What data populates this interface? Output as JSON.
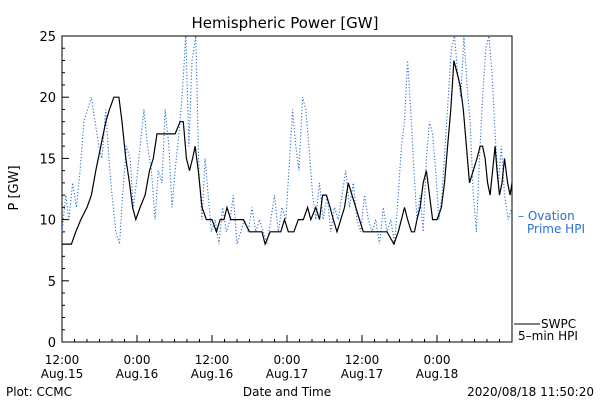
{
  "chart_data": {
    "type": "line",
    "title": "Hemispheric Power [GW]",
    "xlabel": "Date and Time",
    "ylabel": "P [GW]",
    "ylim": [
      0,
      25
    ],
    "yticks": [
      "0",
      "5",
      "10",
      "15",
      "20",
      "25"
    ],
    "xlim_hours_labels": "2020-08-15 12:00 to 2020-08-18 12:00",
    "xticks": [
      {
        "time": "12:00",
        "date": "Aug.15"
      },
      {
        "time": "0:00",
        "date": "Aug.16"
      },
      {
        "time": "12:00",
        "date": "Aug.16"
      },
      {
        "time": "0:00",
        "date": "Aug.17"
      },
      {
        "time": "12:00",
        "date": "Aug.17"
      },
      {
        "time": "0:00",
        "date": "Aug.18"
      }
    ],
    "grid": false,
    "legend_position": "right",
    "series": [
      {
        "name": "SWPC 5-min HPI",
        "legend_line1": "SWPC",
        "legend_line2": "5–min HPI",
        "style": "solid",
        "color": "#000000",
        "points": [
          [
            0,
            8
          ],
          [
            1.5,
            8
          ],
          [
            2.2,
            9
          ],
          [
            3,
            10
          ],
          [
            4,
            11
          ],
          [
            4.7,
            12
          ],
          [
            5.4,
            14
          ],
          [
            6.2,
            16
          ],
          [
            7,
            18
          ],
          [
            7.6,
            19
          ],
          [
            8.3,
            20
          ],
          [
            9.1,
            20
          ],
          [
            9.6,
            18
          ],
          [
            10.2,
            15
          ],
          [
            10.8,
            13
          ],
          [
            11.3,
            11
          ],
          [
            11.8,
            10
          ],
          [
            12.5,
            11
          ],
          [
            13.3,
            12
          ],
          [
            14,
            14
          ],
          [
            14.6,
            15
          ],
          [
            15.2,
            17
          ],
          [
            16,
            17
          ],
          [
            17,
            17
          ],
          [
            18.1,
            17
          ],
          [
            18.9,
            18
          ],
          [
            19.4,
            18
          ],
          [
            19.9,
            15
          ],
          [
            20.4,
            14
          ],
          [
            20.9,
            15
          ],
          [
            21.3,
            16
          ],
          [
            21.8,
            14
          ],
          [
            22.4,
            11
          ],
          [
            23.1,
            10
          ],
          [
            24,
            10
          ],
          [
            24.7,
            9
          ],
          [
            25.3,
            10
          ],
          [
            25.9,
            10
          ],
          [
            26.4,
            11
          ],
          [
            27,
            10
          ],
          [
            28,
            10
          ],
          [
            29,
            10
          ],
          [
            30,
            9
          ],
          [
            31,
            9
          ],
          [
            32,
            9
          ],
          [
            32.5,
            8
          ],
          [
            33.3,
            9
          ],
          [
            34,
            9
          ],
          [
            35,
            9
          ],
          [
            35.6,
            10
          ],
          [
            36.2,
            9
          ],
          [
            37.1,
            9
          ],
          [
            37.8,
            10
          ],
          [
            38.6,
            10
          ],
          [
            39.3,
            11
          ],
          [
            39.8,
            10
          ],
          [
            40.6,
            11
          ],
          [
            41.2,
            10
          ],
          [
            41.7,
            12
          ],
          [
            42.3,
            12
          ],
          [
            42.9,
            11
          ],
          [
            43.4,
            10
          ],
          [
            44,
            9
          ],
          [
            44.6,
            10
          ],
          [
            45.2,
            11
          ],
          [
            45.8,
            13
          ],
          [
            46.4,
            12
          ],
          [
            47,
            11
          ],
          [
            47.6,
            10
          ],
          [
            48.2,
            9
          ],
          [
            49,
            9
          ],
          [
            50,
            9
          ],
          [
            51,
            9
          ],
          [
            52,
            9
          ],
          [
            53.1,
            8
          ],
          [
            53.8,
            9
          ],
          [
            54.3,
            10
          ],
          [
            54.8,
            11
          ],
          [
            55.3,
            10
          ],
          [
            55.9,
            9
          ],
          [
            56.4,
            9
          ],
          [
            56.8,
            10
          ],
          [
            57.3,
            11
          ],
          [
            57.8,
            13
          ],
          [
            58.3,
            14
          ],
          [
            58.8,
            12
          ],
          [
            59.3,
            10
          ],
          [
            60,
            10
          ],
          [
            60.7,
            11
          ],
          [
            61.2,
            13
          ],
          [
            61.7,
            16
          ],
          [
            62.2,
            19
          ],
          [
            62.7,
            23
          ],
          [
            63.2,
            22
          ],
          [
            63.7,
            21
          ],
          [
            64.2,
            19
          ],
          [
            64.7,
            16
          ],
          [
            65.2,
            13
          ],
          [
            65.8,
            14
          ],
          [
            66.4,
            15
          ],
          [
            66.9,
            16
          ],
          [
            67.3,
            16
          ],
          [
            67.7,
            15
          ],
          [
            68.1,
            13
          ],
          [
            68.5,
            12
          ],
          [
            68.9,
            14
          ],
          [
            69.3,
            16
          ],
          [
            69.6,
            14
          ],
          [
            70,
            12
          ],
          [
            70.4,
            13
          ],
          [
            70.8,
            15
          ],
          [
            71.3,
            13
          ],
          [
            71.7,
            12
          ],
          [
            72,
            13
          ]
        ]
      },
      {
        "name": "Ovation Prime HPI",
        "legend_line1": "– Ovation",
        "legend_line2": "Prime HPI",
        "style": "dotted",
        "color": "#2a6fd4",
        "points": [
          [
            0,
            9
          ],
          [
            0.6,
            12
          ],
          [
            1.1,
            10
          ],
          [
            1.7,
            13
          ],
          [
            2.3,
            11
          ],
          [
            2.9,
            14
          ],
          [
            3.5,
            18
          ],
          [
            4.1,
            19
          ],
          [
            4.7,
            20
          ],
          [
            5.3,
            18
          ],
          [
            5.9,
            16
          ],
          [
            6.4,
            15
          ],
          [
            7,
            19
          ],
          [
            7.5,
            15
          ],
          [
            8,
            12
          ],
          [
            8.6,
            9
          ],
          [
            9.2,
            8
          ],
          [
            9.7,
            12
          ],
          [
            10.3,
            16
          ],
          [
            10.9,
            15
          ],
          [
            11.4,
            11
          ],
          [
            11.9,
            13
          ],
          [
            12.5,
            16
          ],
          [
            13.1,
            19
          ],
          [
            13.7,
            16
          ],
          [
            14.3,
            14
          ],
          [
            14.9,
            10
          ],
          [
            15.4,
            14
          ],
          [
            16,
            13
          ],
          [
            16.5,
            19
          ],
          [
            17.1,
            16
          ],
          [
            17.6,
            11
          ],
          [
            18.1,
            14
          ],
          [
            18.7,
            17
          ],
          [
            19.2,
            20
          ],
          [
            19.8,
            25
          ],
          [
            20.3,
            16
          ],
          [
            20.8,
            23
          ],
          [
            21.4,
            25
          ],
          [
            21.9,
            14
          ],
          [
            22.4,
            10
          ],
          [
            22.9,
            15
          ],
          [
            23.4,
            12
          ],
          [
            23.9,
            9
          ],
          [
            24.5,
            10
          ],
          [
            25.1,
            8
          ],
          [
            25.7,
            11
          ],
          [
            26.3,
            9
          ],
          [
            26.9,
            10
          ],
          [
            27.4,
            12
          ],
          [
            28,
            8
          ],
          [
            28.6,
            9
          ],
          [
            29.2,
            10
          ],
          [
            29.8,
            9
          ],
          [
            30.4,
            11
          ],
          [
            31,
            9
          ],
          [
            31.6,
            10
          ],
          [
            32.2,
            9
          ],
          [
            32.8,
            8
          ],
          [
            33.4,
            10
          ],
          [
            34,
            12
          ],
          [
            34.6,
            9
          ],
          [
            35.2,
            11
          ],
          [
            35.8,
            10
          ],
          [
            36.3,
            14
          ],
          [
            36.9,
            19
          ],
          [
            37.4,
            16
          ],
          [
            37.9,
            14
          ],
          [
            38.5,
            20
          ],
          [
            39,
            19
          ],
          [
            39.5,
            16
          ],
          [
            40.1,
            12
          ],
          [
            40.6,
            10
          ],
          [
            41.2,
            13
          ],
          [
            41.8,
            10
          ],
          [
            42.4,
            12
          ],
          [
            43,
            9
          ],
          [
            43.6,
            11
          ],
          [
            44.2,
            10
          ],
          [
            44.8,
            12
          ],
          [
            45.4,
            14
          ],
          [
            46,
            11
          ],
          [
            46.6,
            13
          ],
          [
            47.2,
            10
          ],
          [
            47.8,
            9
          ],
          [
            48.4,
            12
          ],
          [
            49,
            10
          ],
          [
            49.6,
            9
          ],
          [
            50.2,
            10
          ],
          [
            50.8,
            8
          ],
          [
            51.4,
            11
          ],
          [
            52,
            9
          ],
          [
            52.6,
            10
          ],
          [
            53.2,
            8
          ],
          [
            53.8,
            12
          ],
          [
            54.3,
            16
          ],
          [
            54.8,
            18
          ],
          [
            55.3,
            23
          ],
          [
            55.8,
            19
          ],
          [
            56.3,
            14
          ],
          [
            56.8,
            10
          ],
          [
            57.3,
            12
          ],
          [
            57.8,
            9
          ],
          [
            58.3,
            15
          ],
          [
            58.8,
            18
          ],
          [
            59.3,
            17
          ],
          [
            59.8,
            14
          ],
          [
            60.3,
            10
          ],
          [
            60.8,
            12
          ],
          [
            61.3,
            16
          ],
          [
            61.8,
            20
          ],
          [
            62.3,
            24
          ],
          [
            62.8,
            25
          ],
          [
            63.3,
            22
          ],
          [
            63.8,
            20
          ],
          [
            64.3,
            25
          ],
          [
            64.8,
            21
          ],
          [
            65.3,
            18
          ],
          [
            65.8,
            12
          ],
          [
            66.3,
            9
          ],
          [
            66.8,
            15
          ],
          [
            67.3,
            20
          ],
          [
            67.8,
            24
          ],
          [
            68.3,
            25
          ],
          [
            68.8,
            22
          ],
          [
            69.3,
            17
          ],
          [
            69.8,
            13
          ],
          [
            70.3,
            16
          ],
          [
            70.8,
            12
          ],
          [
            71.4,
            10
          ],
          [
            72,
            11
          ]
        ]
      }
    ]
  },
  "footer": {
    "left": "Plot: CCMC",
    "center": "Date and Time",
    "right": "2020/08/18 11:50:20"
  }
}
